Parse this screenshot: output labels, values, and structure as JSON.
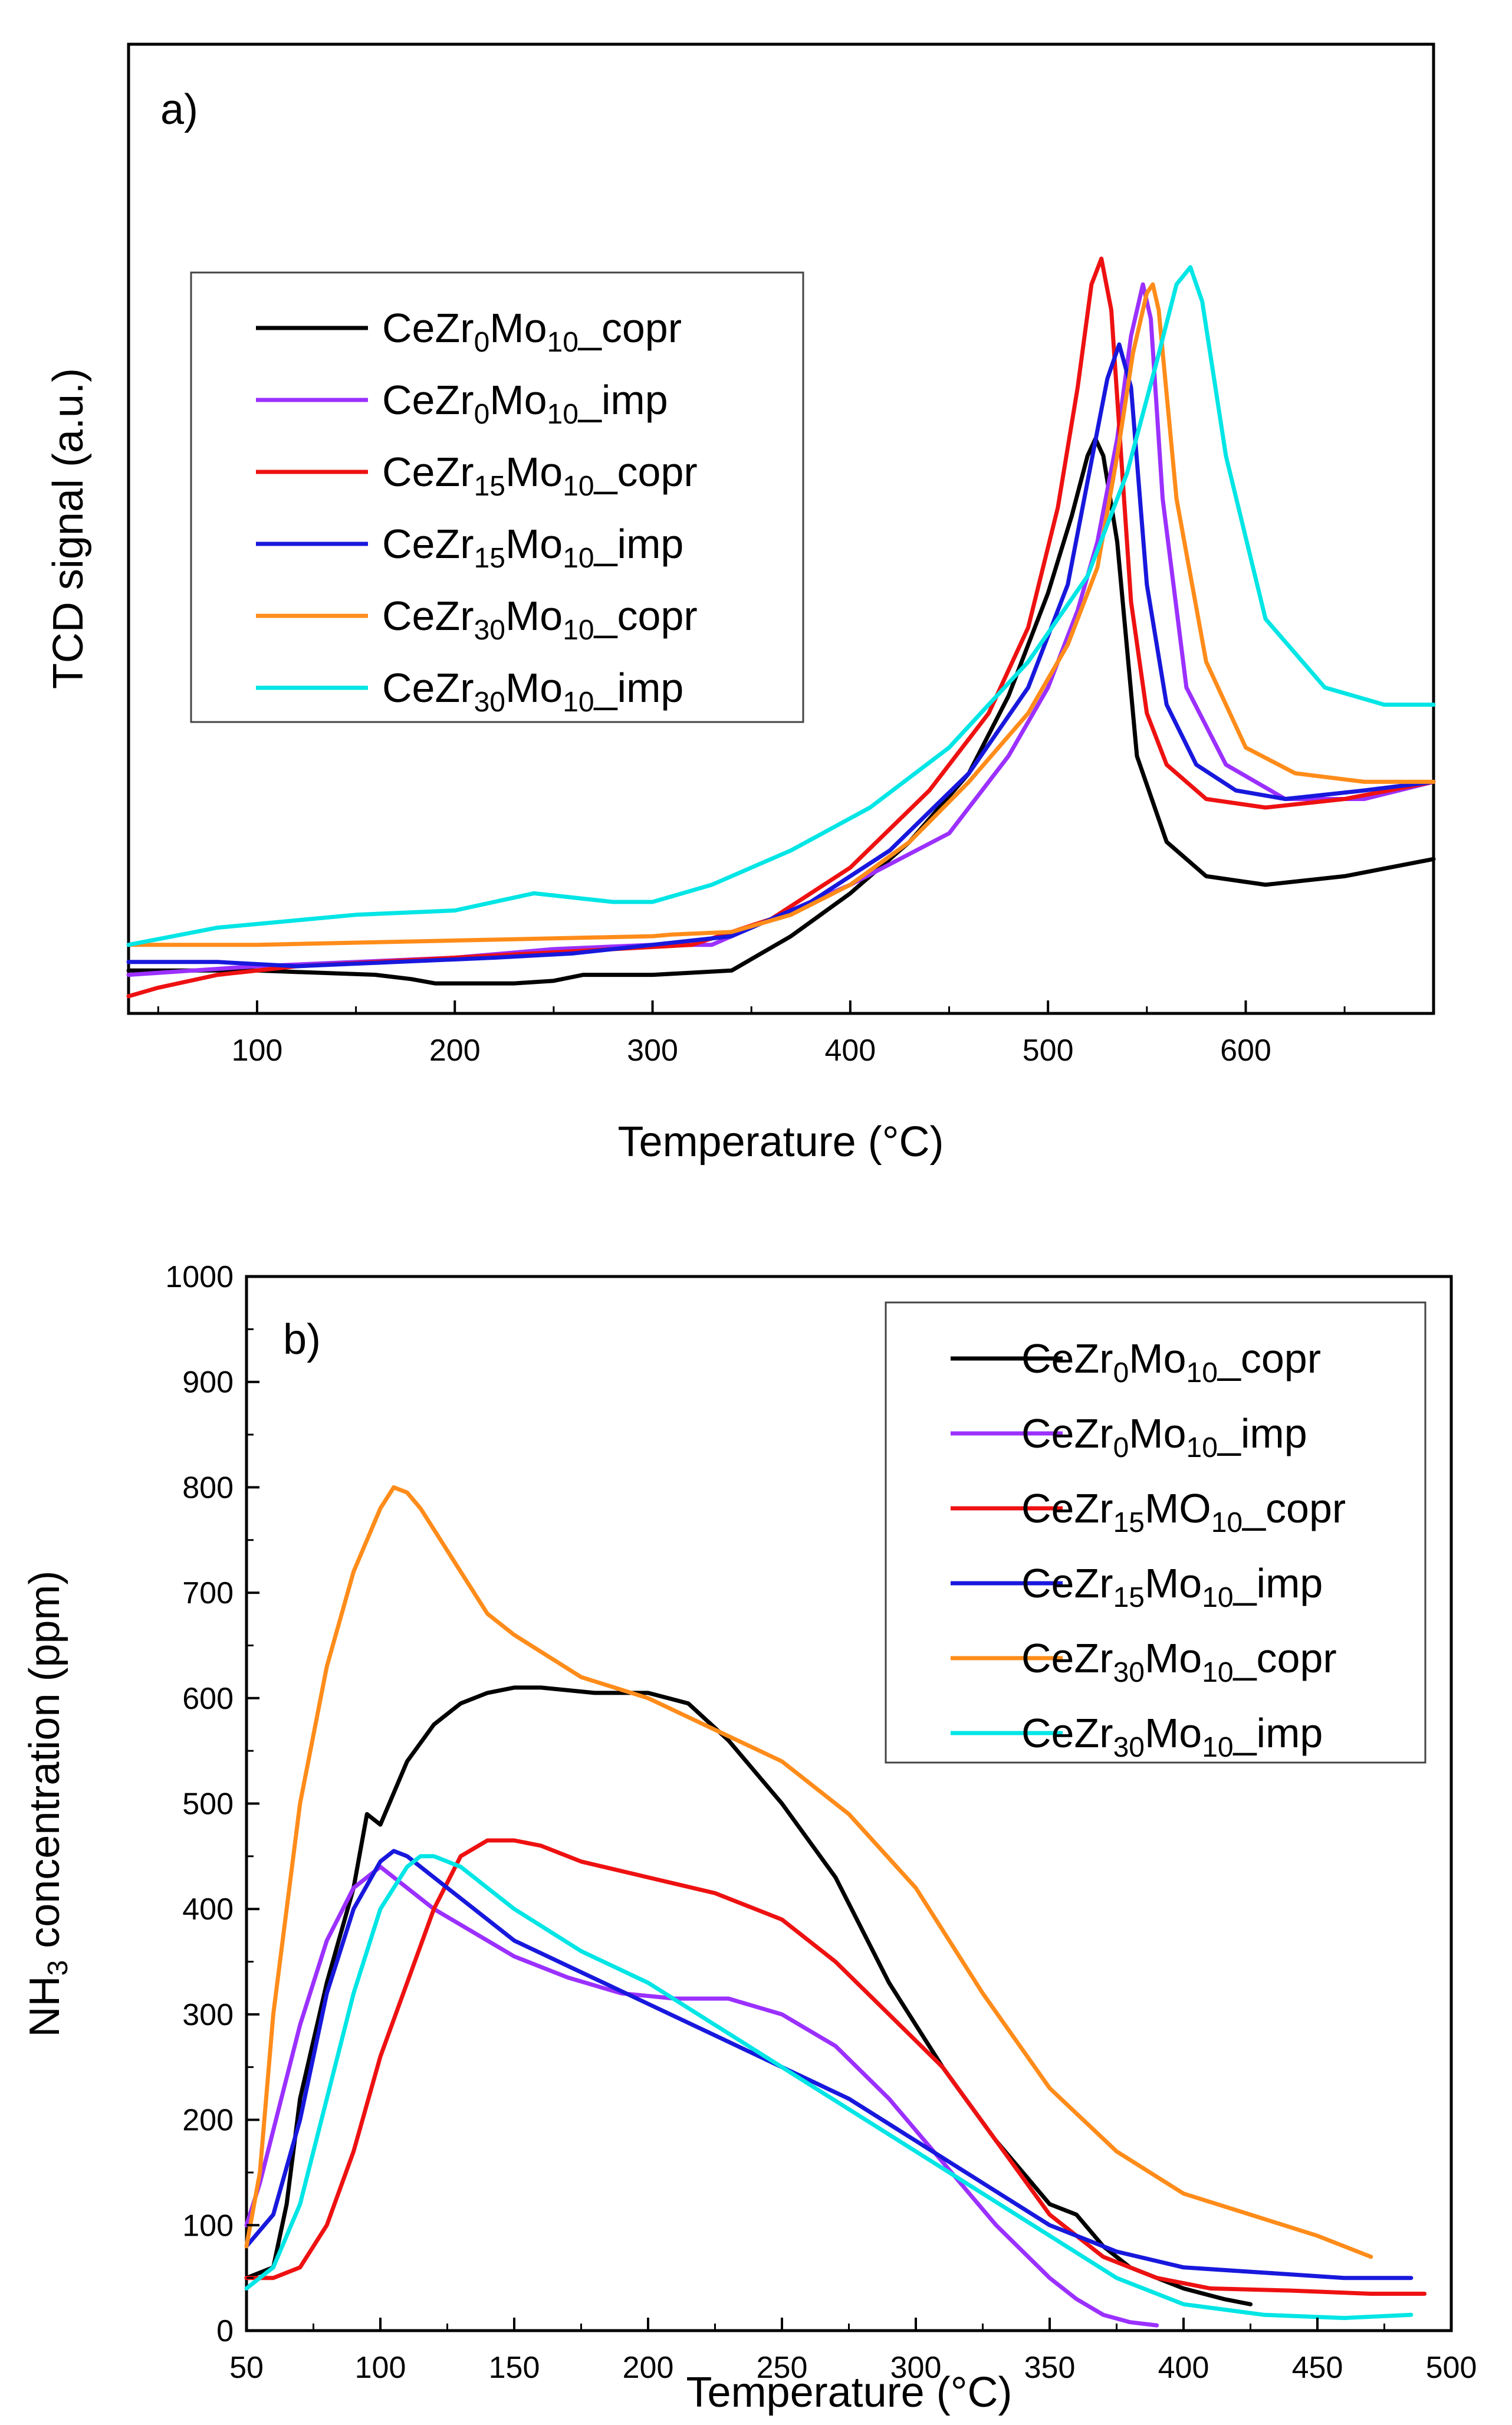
{
  "chart_data": [
    {
      "type": "line",
      "panel_label": "a)",
      "xlabel": "Temperature (°C)",
      "ylabel": "TCD signal (a.u.)",
      "xlim": [
        35,
        695
      ],
      "ylim": [
        -0.05,
        1.08
      ],
      "x_ticks": [
        100,
        200,
        300,
        400,
        500,
        600
      ],
      "y_ticks_shown": false,
      "legend_position": "upper-left",
      "series": [
        {
          "base": "CeZr",
          "sub1": "0",
          "mid": "Mo",
          "sub2": "10",
          "suffix": "_copr",
          "color": "#000000",
          "x": [
            35,
            100,
            160,
            178,
            190,
            230,
            250,
            265,
            300,
            340,
            370,
            400,
            430,
            460,
            480,
            500,
            512,
            520,
            524,
            528,
            535,
            545,
            560,
            580,
            610,
            650,
            695
          ],
          "y": [
            0.0,
            0.0,
            -0.005,
            -0.01,
            -0.015,
            -0.015,
            -0.012,
            -0.005,
            -0.005,
            0.0,
            0.04,
            0.09,
            0.15,
            0.23,
            0.32,
            0.44,
            0.53,
            0.6,
            0.62,
            0.6,
            0.5,
            0.25,
            0.15,
            0.11,
            0.1,
            0.11,
            0.13
          ]
        },
        {
          "base": "CeZr",
          "sub1": "0",
          "mid": "Mo",
          "sub2": "10",
          "suffix": "_imp",
          "color": "#9b30ff",
          "x": [
            35,
            100,
            150,
            200,
            250,
            300,
            330,
            350,
            400,
            450,
            480,
            500,
            515,
            525,
            535,
            542,
            548,
            552,
            558,
            570,
            590,
            620,
            660,
            695
          ],
          "y": [
            -0.005,
            0.005,
            0.01,
            0.015,
            0.025,
            0.03,
            0.03,
            0.05,
            0.1,
            0.16,
            0.25,
            0.33,
            0.42,
            0.5,
            0.62,
            0.74,
            0.8,
            0.76,
            0.55,
            0.33,
            0.24,
            0.2,
            0.2,
            0.22
          ]
        },
        {
          "base": "CeZr",
          "sub1": "15",
          "mid": "Mo",
          "sub2": "10",
          "suffix": "_copr",
          "color": "#ee1111",
          "x": [
            35,
            50,
            80,
            120,
            160,
            200,
            240,
            280,
            320,
            360,
            400,
            440,
            470,
            490,
            505,
            515,
            522,
            527,
            532,
            537,
            542,
            550,
            560,
            580,
            610,
            650,
            695
          ],
          "y": [
            -0.03,
            -0.02,
            -0.005,
            0.005,
            0.01,
            0.015,
            0.02,
            0.025,
            0.03,
            0.06,
            0.12,
            0.21,
            0.3,
            0.4,
            0.54,
            0.68,
            0.8,
            0.83,
            0.77,
            0.6,
            0.43,
            0.3,
            0.24,
            0.2,
            0.19,
            0.2,
            0.22
          ]
        },
        {
          "base": "CeZr",
          "sub1": "15",
          "mid": "Mo",
          "sub2": "10",
          "suffix": "_imp",
          "color": "#1818dd",
          "x": [
            35,
            80,
            120,
            170,
            220,
            260,
            300,
            340,
            380,
            420,
            460,
            490,
            510,
            520,
            530,
            536,
            542,
            550,
            560,
            575,
            595,
            620,
            660,
            695
          ],
          "y": [
            0.01,
            0.01,
            0.005,
            0.01,
            0.015,
            0.02,
            0.03,
            0.04,
            0.08,
            0.14,
            0.23,
            0.33,
            0.45,
            0.57,
            0.69,
            0.73,
            0.68,
            0.45,
            0.31,
            0.24,
            0.21,
            0.2,
            0.21,
            0.22
          ]
        },
        {
          "base": "CeZr",
          "sub1": "30",
          "mid": "Mo",
          "sub2": "10",
          "suffix": "_copr",
          "color": "#ff8c1a",
          "x": [
            35,
            100,
            200,
            300,
            310,
            340,
            370,
            400,
            430,
            460,
            490,
            510,
            525,
            535,
            543,
            550,
            553,
            556,
            565,
            580,
            600,
            625,
            660,
            695
          ],
          "y": [
            0.03,
            0.03,
            0.035,
            0.04,
            0.042,
            0.045,
            0.065,
            0.1,
            0.15,
            0.22,
            0.3,
            0.38,
            0.47,
            0.6,
            0.72,
            0.79,
            0.8,
            0.77,
            0.55,
            0.36,
            0.26,
            0.23,
            0.22,
            0.22
          ]
        },
        {
          "base": "CeZr",
          "sub1": "30",
          "mid": "Mo",
          "sub2": "10",
          "suffix": "_imp",
          "color": "#00e5e5",
          "x": [
            35,
            80,
            150,
            200,
            240,
            280,
            300,
            330,
            370,
            410,
            450,
            490,
            520,
            540,
            555,
            565,
            572,
            578,
            590,
            610,
            640,
            670,
            695
          ],
          "y": [
            0.03,
            0.05,
            0.065,
            0.07,
            0.09,
            0.08,
            0.08,
            0.1,
            0.14,
            0.19,
            0.26,
            0.36,
            0.46,
            0.58,
            0.71,
            0.8,
            0.82,
            0.78,
            0.6,
            0.41,
            0.33,
            0.31,
            0.31
          ]
        }
      ]
    },
    {
      "type": "line",
      "panel_label": "b)",
      "xlabel": "Temperature (°C)",
      "ylabel_main": "NH",
      "ylabel_sub": "3",
      "ylabel_rest": " concentration (ppm)",
      "xlim": [
        50,
        500
      ],
      "ylim": [
        0,
        1000
      ],
      "x_ticks": [
        50,
        100,
        150,
        200,
        250,
        300,
        350,
        400,
        450,
        500
      ],
      "y_ticks": [
        0,
        100,
        200,
        300,
        400,
        500,
        600,
        700,
        800,
        900,
        1000
      ],
      "legend_position": "upper-right",
      "series": [
        {
          "base": "CeZr",
          "sub1": "0",
          "mid": "Mo",
          "sub2": "10",
          "suffix": "_copr",
          "color": "#000000",
          "x": [
            50,
            60,
            65,
            70,
            80,
            90,
            95,
            100,
            110,
            120,
            130,
            140,
            150,
            160,
            180,
            200,
            215,
            230,
            250,
            270,
            290,
            310,
            330,
            350,
            360,
            370,
            380,
            400,
            415,
            425
          ],
          "y": [
            50,
            60,
            120,
            220,
            330,
            420,
            490,
            480,
            540,
            575,
            595,
            605,
            610,
            610,
            605,
            605,
            595,
            560,
            500,
            430,
            330,
            250,
            180,
            120,
            110,
            80,
            60,
            40,
            30,
            25
          ]
        },
        {
          "base": "CeZr",
          "sub1": "0",
          "mid": "Mo",
          "sub2": "10",
          "suffix": "_imp",
          "color": "#9b30ff",
          "x": [
            50,
            55,
            60,
            70,
            80,
            90,
            100,
            110,
            120,
            130,
            140,
            150,
            170,
            190,
            210,
            230,
            250,
            270,
            290,
            310,
            330,
            350,
            360,
            370,
            380,
            390
          ],
          "y": [
            100,
            140,
            190,
            290,
            370,
            420,
            440,
            420,
            400,
            385,
            370,
            355,
            335,
            320,
            315,
            315,
            300,
            270,
            220,
            160,
            100,
            50,
            30,
            15,
            8,
            5
          ]
        },
        {
          "base": "CeZr",
          "sub1": "15",
          "mid": "MO",
          "sub2": "10",
          "suffix": "_copr",
          "color": "#ee1111",
          "x": [
            50,
            60,
            70,
            80,
            90,
            100,
            110,
            120,
            130,
            140,
            150,
            160,
            175,
            200,
            225,
            250,
            270,
            290,
            310,
            330,
            350,
            370,
            390,
            410,
            440,
            470,
            490
          ],
          "y": [
            50,
            50,
            60,
            100,
            170,
            260,
            330,
            400,
            450,
            465,
            465,
            460,
            445,
            430,
            415,
            390,
            350,
            300,
            250,
            180,
            110,
            70,
            50,
            40,
            38,
            35,
            35
          ]
        },
        {
          "base": "CeZr",
          "sub1": "15",
          "mid": "Mo",
          "sub2": "10",
          "suffix": "_imp",
          "color": "#1818dd",
          "x": [
            50,
            60,
            70,
            80,
            90,
            100,
            105,
            110,
            120,
            130,
            150,
            175,
            200,
            225,
            250,
            275,
            300,
            325,
            350,
            375,
            400,
            430,
            460,
            485
          ],
          "y": [
            80,
            110,
            200,
            320,
            400,
            445,
            455,
            450,
            430,
            410,
            370,
            340,
            310,
            280,
            250,
            220,
            180,
            140,
            100,
            75,
            60,
            55,
            50,
            50
          ]
        },
        {
          "base": "CeZr",
          "sub1": "30",
          "mid": "Mo",
          "sub2": "10",
          "suffix": "_copr",
          "color": "#ff8c1a",
          "x": [
            50,
            55,
            60,
            70,
            80,
            90,
            100,
            105,
            110,
            115,
            120,
            130,
            140,
            150,
            175,
            200,
            225,
            250,
            275,
            300,
            325,
            350,
            375,
            400,
            425,
            450,
            470
          ],
          "y": [
            80,
            150,
            300,
            500,
            630,
            720,
            780,
            800,
            795,
            780,
            760,
            720,
            680,
            660,
            620,
            600,
            570,
            540,
            490,
            420,
            320,
            230,
            170,
            130,
            110,
            90,
            70
          ]
        },
        {
          "base": "CeZr",
          "sub1": "30",
          "mid": "Mo",
          "sub2": "10",
          "suffix": "_imp",
          "color": "#00e5e5",
          "x": [
            50,
            60,
            70,
            80,
            90,
            100,
            110,
            115,
            120,
            130,
            140,
            150,
            175,
            200,
            225,
            250,
            275,
            300,
            325,
            350,
            375,
            400,
            430,
            460,
            485
          ],
          "y": [
            40,
            60,
            120,
            220,
            320,
            400,
            440,
            450,
            450,
            440,
            420,
            400,
            360,
            330,
            290,
            250,
            210,
            170,
            130,
            90,
            50,
            25,
            15,
            12,
            15
          ]
        }
      ]
    }
  ]
}
